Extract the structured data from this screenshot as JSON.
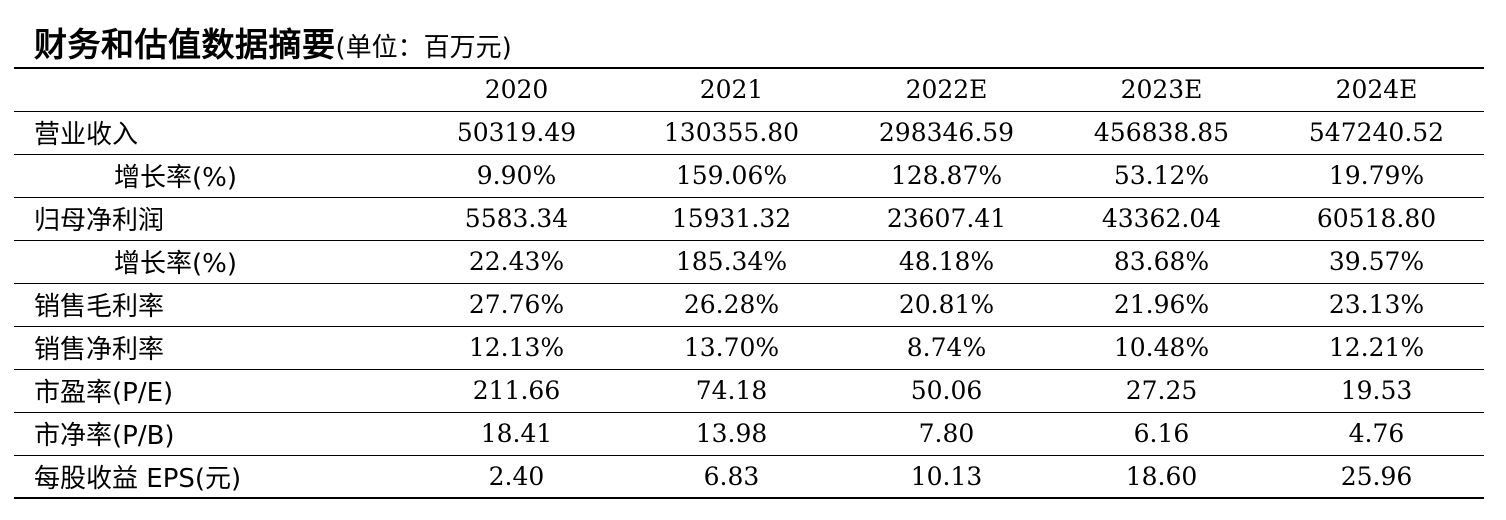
{
  "title": "财务和估值数据摘要",
  "unit": "(单位：百万元)",
  "columns": [
    "2020",
    "2021",
    "2022E",
    "2023E",
    "2024E"
  ],
  "rows": [
    {
      "label": "营业收入",
      "values": [
        "50319.49",
        "130355.80",
        "298346.59",
        "456838.85",
        "547240.52"
      ]
    },
    {
      "label": "增长率(%)",
      "values": [
        "9.90%",
        "159.06%",
        "128.87%",
        "53.12%",
        "19.79%"
      ]
    },
    {
      "label": "归母净利润",
      "values": [
        "5583.34",
        "15931.32",
        "23607.41",
        "43362.04",
        "60518.80"
      ]
    },
    {
      "label": "增长率(%)",
      "values": [
        "22.43%",
        "185.34%",
        "48.18%",
        "83.68%",
        "39.57%"
      ]
    },
    {
      "label": "销售毛利率",
      "values": [
        "27.76%",
        "26.28%",
        "20.81%",
        "21.96%",
        "23.13%"
      ]
    },
    {
      "label": "销售净利率",
      "values": [
        "12.13%",
        "13.70%",
        "8.74%",
        "10.48%",
        "12.21%"
      ]
    },
    {
      "label": "市盈率(P/E)",
      "values": [
        "211.66",
        "74.18",
        "50.06",
        "27.25",
        "19.53"
      ]
    },
    {
      "label": "市净率(P/B)",
      "values": [
        "18.41",
        "13.98",
        "7.80",
        "6.16",
        "4.76"
      ]
    },
    {
      "label": "每股收益 EPS(元)",
      "values": [
        "2.40",
        "6.83",
        "10.13",
        "18.60",
        "25.96"
      ]
    }
  ]
}
